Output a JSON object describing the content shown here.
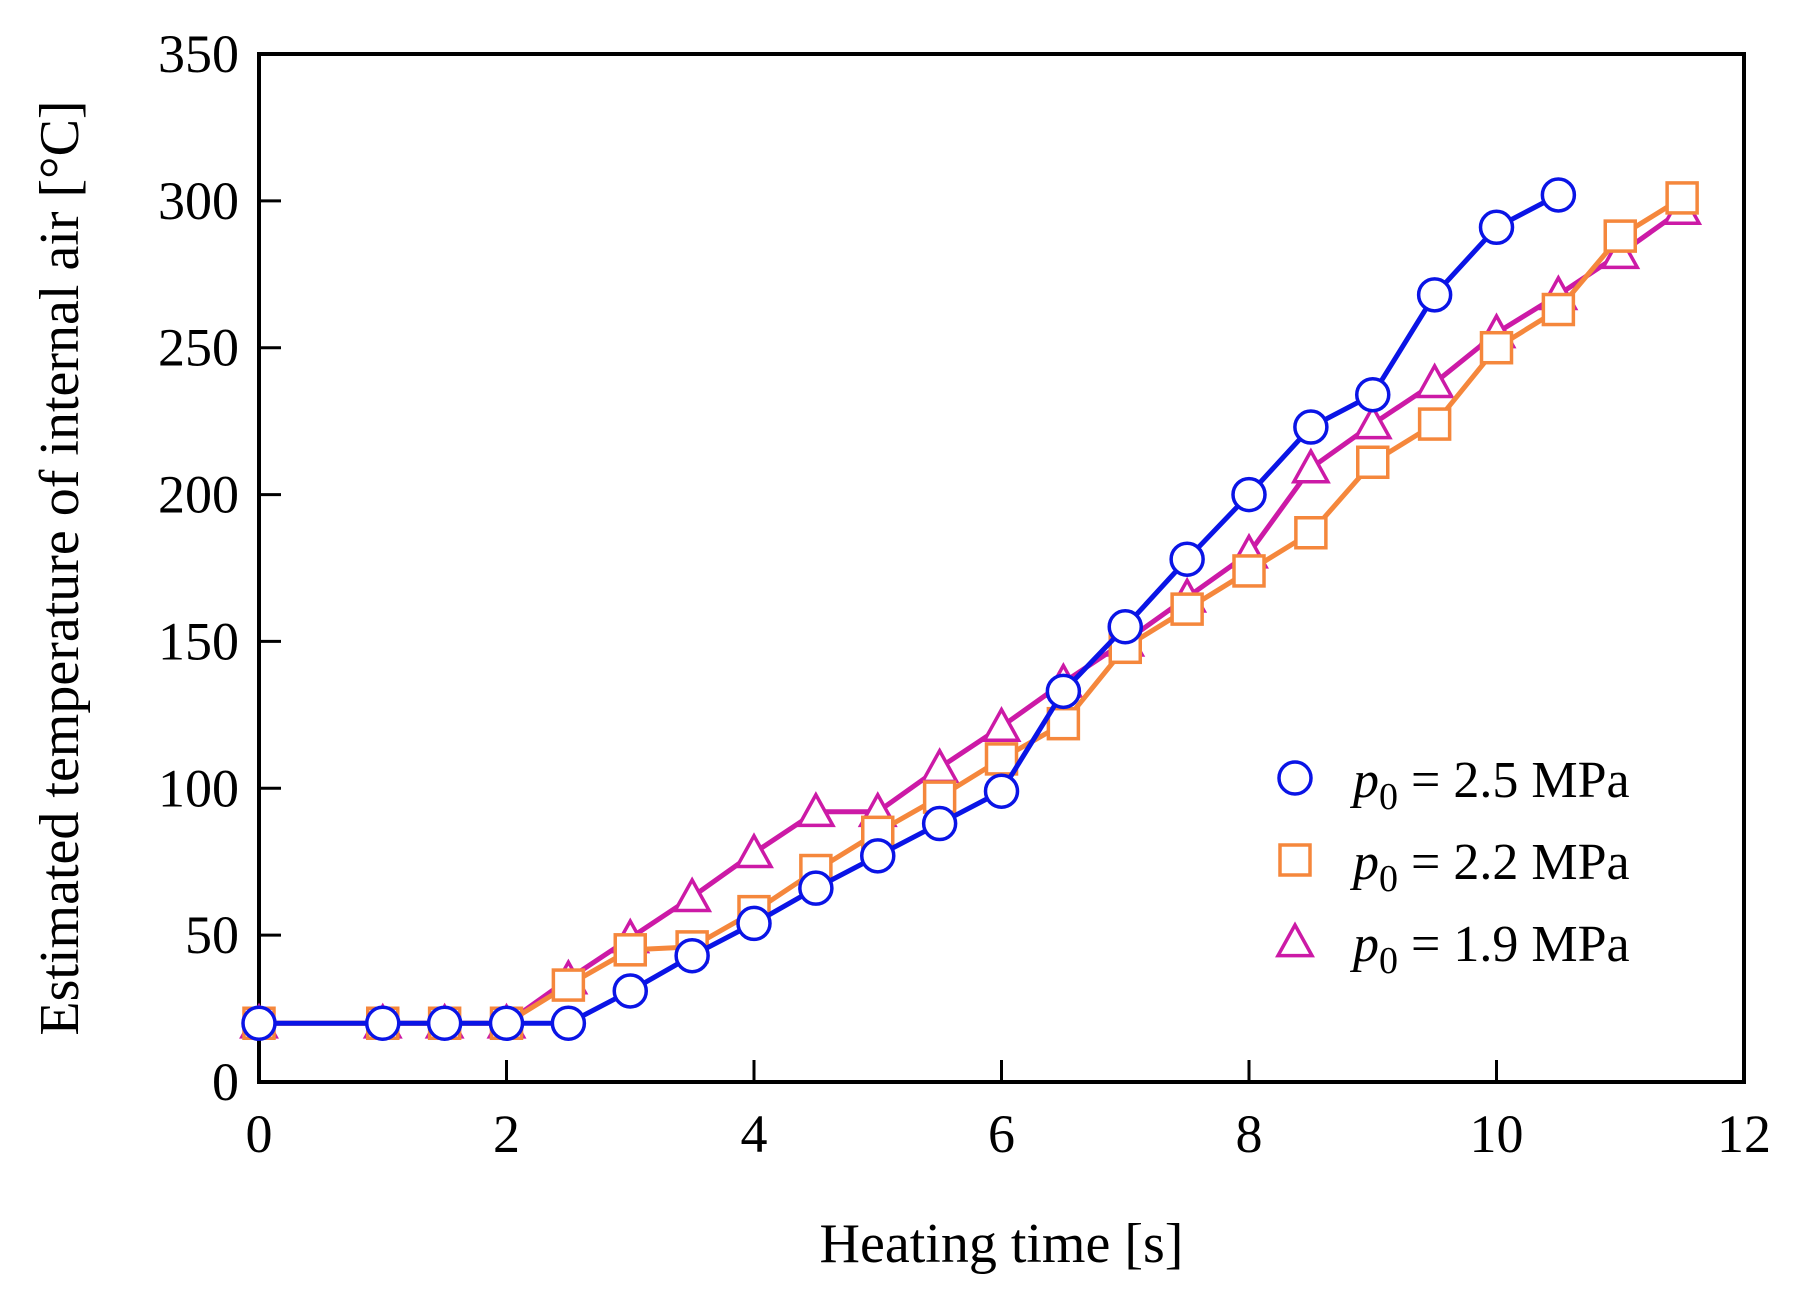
{
  "chart_data": {
    "type": "line",
    "xlabel": "Heating time [s]",
    "ylabel": "Estimated temperature of internal air [°C]",
    "xlim": [
      0,
      12
    ],
    "ylim": [
      0,
      350
    ],
    "xticks": [
      0,
      2,
      4,
      6,
      8,
      10,
      12
    ],
    "yticks": [
      0,
      50,
      100,
      150,
      200,
      250,
      300,
      350
    ],
    "grid": false,
    "legend_position": "bottom-right",
    "series": [
      {
        "name": "p0 = 2.5 MPa",
        "legend": {
          "symbol": "p",
          "subscript": "0",
          "rest": " = 2.5 MPa"
        },
        "marker": "circle",
        "color": "#0a14e6",
        "x": [
          0,
          1,
          1.5,
          2,
          2.5,
          3,
          3.5,
          4,
          4.5,
          5,
          5.5,
          6,
          6.5,
          7,
          7.5,
          8,
          8.5,
          9,
          9.5,
          10,
          10.5
        ],
        "y": [
          20,
          20,
          20,
          20,
          20,
          31,
          43,
          54,
          66,
          77,
          88,
          99,
          133,
          155,
          178,
          200,
          223,
          234,
          268,
          291,
          302
        ]
      },
      {
        "name": "p0 = 2.2 MPa",
        "legend": {
          "symbol": "p",
          "subscript": "0",
          "rest": " = 2.2 MPa"
        },
        "marker": "square",
        "color": "#f5873c",
        "x": [
          0,
          1,
          1.5,
          2,
          2.5,
          3,
          3.5,
          4,
          4.5,
          5,
          5.5,
          6,
          6.5,
          7,
          7.5,
          8,
          8.5,
          9,
          9.5,
          10,
          10.5,
          11,
          11.5
        ],
        "y": [
          20,
          20,
          20,
          20,
          33,
          45,
          46,
          58,
          72,
          85,
          97,
          110,
          122,
          148,
          161,
          174,
          187,
          211,
          224,
          250,
          263,
          288,
          301
        ]
      },
      {
        "name": "p0 = 1.9 MPa",
        "legend": {
          "symbol": "p",
          "subscript": "0",
          "rest": " = 1.9 MPa"
        },
        "marker": "triangle",
        "color": "#cc1aa6",
        "x": [
          0,
          1,
          1.5,
          2,
          2.5,
          3,
          3.5,
          4,
          4.5,
          5,
          5.5,
          6,
          6.5,
          7,
          7.5,
          8,
          8.5,
          9,
          9.5,
          10,
          10.5,
          11,
          11.5
        ],
        "y": [
          20,
          20,
          20,
          20,
          35,
          49,
          63,
          78,
          92,
          92,
          107,
          121,
          136,
          150,
          165,
          180,
          209,
          224,
          238,
          255,
          268,
          282,
          297
        ]
      }
    ]
  }
}
